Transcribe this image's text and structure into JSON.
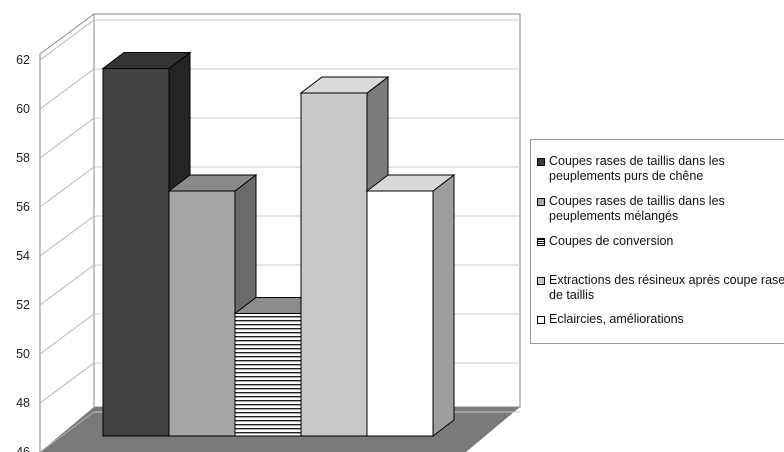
{
  "chart_data": {
    "type": "bar",
    "categories": [
      "Coupes rases de taillis dans les peuplements purs de chêne",
      "Coupes rases de taillis dans les peuplements mélangés",
      "Coupes de conversion",
      "Extractions des résineux après coupe rase de taillis",
      "Eclaircies, améliorations"
    ],
    "values": [
      61,
      56,
      51,
      60,
      56
    ],
    "ylim": [
      46,
      62
    ],
    "yticks": [
      46,
      48,
      50,
      52,
      54,
      56,
      58,
      60,
      62
    ],
    "grid": true,
    "legend_position": "right",
    "colors": {
      "front": [
        "#424242",
        "#a6a6a6",
        "#ffffff",
        "#c8c8c8",
        "#ffffff"
      ],
      "top": [
        "#333333",
        "#8a8a8a",
        "#8c8c8c",
        "#dadada",
        "#d8d8d8"
      ],
      "side": [
        "#242424",
        "#6a6a6a",
        "#9c9c9c",
        "#7c7c7c",
        "#9e9e9e"
      ],
      "floor": "#7a7a7a",
      "wall_line": "#8a8a8a"
    }
  },
  "legend": {
    "items": [
      {
        "label": "Coupes rases de taillis dans les peuplements purs de chêne",
        "swatch": "#3a3a3a"
      },
      {
        "label": "Coupes rases de taillis dans les peuplements mélangés",
        "swatch": "#a6a6a6"
      },
      {
        "label": "Coupes de conversion",
        "swatch": "hatch"
      },
      {
        "label": "Extractions des résineux après coupe rase de taillis",
        "swatch": "#c8c8c8"
      },
      {
        "label": "Eclaircies, améliorations",
        "swatch": "#ffffff"
      }
    ]
  }
}
